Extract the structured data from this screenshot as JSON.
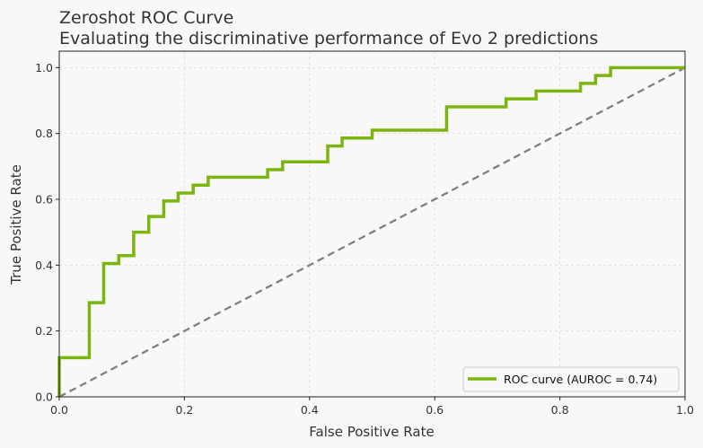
{
  "chart_data": {
    "type": "line",
    "title": "Zeroshot ROC Curve",
    "subtitle": "Evaluating the discriminative performance of Evo 2 predictions",
    "xlabel": "False Positive Rate",
    "ylabel": "True Positive Rate",
    "xlim": [
      0,
      1
    ],
    "ylim": [
      0,
      1.05
    ],
    "xticks": [
      0.0,
      0.2,
      0.4,
      0.6,
      0.8,
      1.0
    ],
    "yticks": [
      0.0,
      0.2,
      0.4,
      0.6,
      0.8,
      1.0
    ],
    "xtick_labels": [
      "0.0",
      "0.2",
      "0.4",
      "0.6",
      "0.8",
      "1.0"
    ],
    "ytick_labels": [
      "0.0",
      "0.2",
      "0.4",
      "0.6",
      "0.8",
      "1.0"
    ],
    "grid": true,
    "legend_position": "bottom-right",
    "series": [
      {
        "name": "ROC curve (AUROC = 0.74)",
        "color": "#7cb50e",
        "style": "solid",
        "x": [
          0.0,
          0.0,
          0.048,
          0.048,
          0.071,
          0.071,
          0.095,
          0.095,
          0.119,
          0.119,
          0.143,
          0.143,
          0.167,
          0.167,
          0.19,
          0.19,
          0.214,
          0.214,
          0.238,
          0.238,
          0.333,
          0.333,
          0.357,
          0.357,
          0.429,
          0.429,
          0.452,
          0.452,
          0.5,
          0.5,
          0.619,
          0.619,
          0.714,
          0.714,
          0.762,
          0.762,
          0.833,
          0.833,
          0.857,
          0.857,
          0.881,
          0.881,
          1.0
        ],
        "y": [
          0.0,
          0.119,
          0.119,
          0.286,
          0.286,
          0.405,
          0.405,
          0.429,
          0.429,
          0.5,
          0.5,
          0.548,
          0.548,
          0.595,
          0.595,
          0.619,
          0.619,
          0.643,
          0.643,
          0.667,
          0.667,
          0.69,
          0.69,
          0.714,
          0.714,
          0.762,
          0.762,
          0.786,
          0.786,
          0.81,
          0.81,
          0.881,
          0.881,
          0.905,
          0.905,
          0.929,
          0.929,
          0.952,
          0.952,
          0.976,
          0.976,
          1.0,
          1.0
        ]
      },
      {
        "name": "",
        "color": "#808080",
        "style": "dashed",
        "x": [
          0,
          1
        ],
        "y": [
          0,
          1
        ]
      }
    ]
  }
}
